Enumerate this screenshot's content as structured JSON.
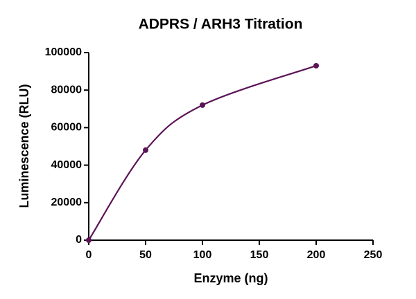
{
  "chart_data": {
    "type": "line",
    "title": "ADPRS / ARH3 Titration",
    "x_label": "Enzyme (ng)",
    "y_label": "Luminescence (RLU)",
    "x": [
      0,
      50,
      100,
      200
    ],
    "values": [
      0,
      48000,
      72000,
      93000
    ],
    "color": "#5c1457",
    "markers": true,
    "smooth": true,
    "xlim": [
      0,
      250
    ],
    "xticks": [
      0,
      50,
      100,
      150,
      200,
      250
    ],
    "ylim": [
      0,
      100000
    ],
    "yticks": [
      0,
      20000,
      40000,
      60000,
      80000,
      100000
    ]
  }
}
